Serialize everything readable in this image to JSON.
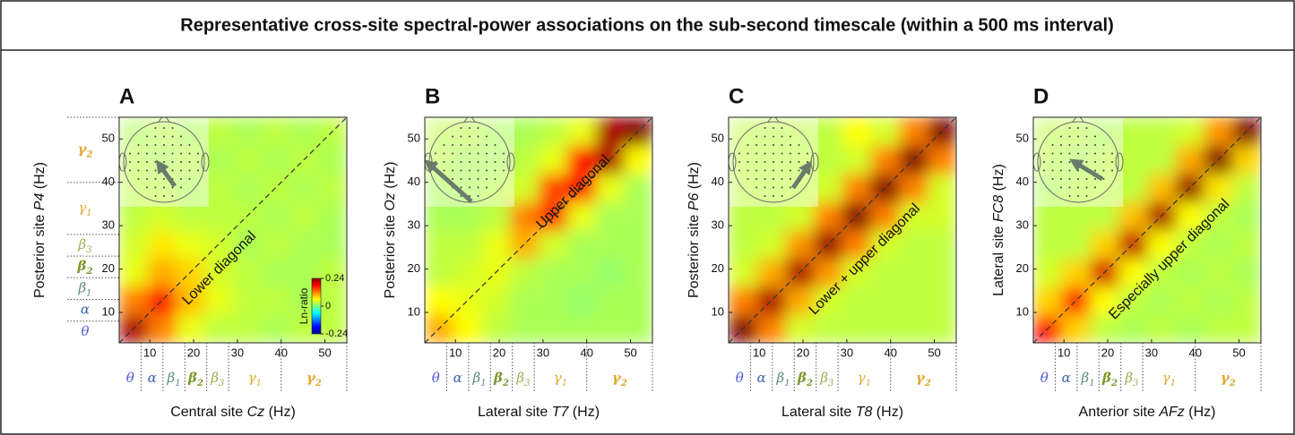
{
  "title": "Representative cross-site spectral-power associations on the sub-second timescale (within a 500 ms interval)",
  "bands": [
    {
      "symbol": "θ",
      "from": 3,
      "to": 8,
      "color": "#4f5bd5"
    },
    {
      "symbol": "α",
      "from": 8,
      "to": 13,
      "color": "#3d64a8"
    },
    {
      "symbol": "β",
      "sub": "1",
      "from": 13,
      "to": 18,
      "color": "#5c8a7a"
    },
    {
      "symbol": "β",
      "sub": "2",
      "from": 18,
      "to": 23,
      "color": "#7a9a2a"
    },
    {
      "symbol": "β",
      "sub": "3",
      "from": 23,
      "to": 28,
      "color": "#a0aa50"
    },
    {
      "symbol": "γ",
      "sub": "1",
      "from": 28,
      "to": 40,
      "color": "#e0a830"
    },
    {
      "symbol": "γ",
      "sub": "2",
      "from": 40,
      "to": 55,
      "color": "#e0a830"
    }
  ],
  "chart_data": [
    {
      "type": "heatmap",
      "panel": "A",
      "xlabel": [
        "Central site ",
        "Cz",
        " (Hz)"
      ],
      "ylabel": [
        "Posterior site ",
        "P4",
        " (Hz)"
      ],
      "annotation": "Lower diagonal",
      "xlim": [
        3,
        55
      ],
      "ylim": [
        3,
        55
      ],
      "xticks": [
        10,
        20,
        30,
        40,
        50
      ],
      "yticks": [
        10,
        20,
        30,
        40,
        50
      ],
      "zlim": [
        -0.24,
        0.24
      ],
      "colorbar": {
        "label": "Ln-ratio",
        "ticks": [
          0.24,
          0,
          -0.24
        ]
      },
      "z": [
        [
          0.22,
          0.12,
          0.05,
          0.03,
          0.03,
          0.02,
          0.03,
          0.03
        ],
        [
          0.12,
          0.18,
          0.09,
          0.05,
          0.03,
          0.03,
          0.02,
          0.03
        ],
        [
          0.05,
          0.1,
          0.08,
          0.04,
          0.03,
          0.02,
          0.02,
          0.03
        ],
        [
          0.04,
          0.07,
          0.05,
          0.04,
          0.02,
          0.03,
          0.02,
          0.02
        ],
        [
          0.03,
          0.04,
          0.03,
          0.03,
          0.03,
          0.02,
          0.03,
          0.02
        ],
        [
          0.03,
          0.03,
          0.02,
          0.03,
          0.02,
          0.03,
          0.02,
          0.03
        ],
        [
          0.03,
          0.02,
          0.03,
          0.02,
          0.03,
          0.02,
          0.03,
          0.02
        ],
        [
          0.02,
          0.03,
          0.02,
          0.03,
          0.02,
          0.03,
          0.02,
          0.03
        ]
      ]
    },
    {
      "type": "heatmap",
      "panel": "B",
      "xlabel": [
        "Lateral site ",
        "T7",
        " (Hz)"
      ],
      "ylabel": [
        "Posterior site ",
        "Oz",
        " (Hz)"
      ],
      "annotation": "Upper diagonal",
      "xlim": [
        3,
        55
      ],
      "ylim": [
        3,
        55
      ],
      "xticks": [
        10,
        20,
        30,
        40,
        50
      ],
      "yticks": [
        10,
        20,
        30,
        40,
        50
      ],
      "zlim": [
        -0.24,
        0.24
      ],
      "z": [
        [
          0.1,
          0.06,
          0.03,
          0.02,
          0.02,
          0.02,
          0.02,
          0.02
        ],
        [
          0.06,
          0.05,
          0.04,
          0.02,
          0.02,
          0.01,
          0.02,
          0.02
        ],
        [
          0.03,
          0.04,
          0.05,
          0.03,
          0.02,
          0.02,
          0.01,
          0.02
        ],
        [
          0.03,
          0.03,
          0.05,
          0.1,
          0.04,
          0.02,
          0.02,
          0.02
        ],
        [
          0.02,
          0.02,
          0.03,
          0.12,
          0.16,
          0.05,
          0.02,
          0.02
        ],
        [
          0.02,
          0.02,
          0.03,
          0.04,
          0.15,
          0.18,
          0.05,
          0.02
        ],
        [
          0.03,
          0.02,
          0.02,
          0.03,
          0.05,
          0.18,
          0.22,
          0.06
        ],
        [
          0.03,
          0.03,
          0.02,
          0.02,
          0.03,
          0.05,
          0.22,
          0.24
        ]
      ]
    },
    {
      "type": "heatmap",
      "panel": "C",
      "xlabel": [
        "Lateral site ",
        "T8",
        " (Hz)"
      ],
      "ylabel": [
        "Posterior site ",
        "P6",
        " (Hz)"
      ],
      "annotation": "Lower + upper diagonal",
      "xlim": [
        3,
        55
      ],
      "ylim": [
        3,
        55
      ],
      "xticks": [
        10,
        20,
        30,
        40,
        50
      ],
      "yticks": [
        10,
        20,
        30,
        40,
        50
      ],
      "zlim": [
        -0.24,
        0.24
      ],
      "z": [
        [
          0.24,
          0.12,
          0.04,
          0.03,
          0.03,
          0.03,
          0.03,
          0.03
        ],
        [
          0.12,
          0.22,
          0.1,
          0.04,
          0.03,
          0.03,
          0.03,
          0.03
        ],
        [
          0.04,
          0.1,
          0.22,
          0.11,
          0.04,
          0.03,
          0.03,
          0.03
        ],
        [
          0.03,
          0.04,
          0.11,
          0.23,
          0.12,
          0.04,
          0.03,
          0.03
        ],
        [
          0.03,
          0.03,
          0.04,
          0.12,
          0.24,
          0.12,
          0.04,
          0.04
        ],
        [
          0.03,
          0.03,
          0.03,
          0.04,
          0.12,
          0.24,
          0.12,
          0.04
        ],
        [
          0.03,
          0.03,
          0.03,
          0.03,
          0.04,
          0.12,
          0.24,
          0.12
        ],
        [
          0.03,
          0.03,
          0.03,
          0.03,
          0.06,
          0.04,
          0.12,
          0.24
        ]
      ]
    },
    {
      "type": "heatmap",
      "panel": "D",
      "xlabel": [
        "Anterior site ",
        "AFz",
        " (Hz)"
      ],
      "ylabel": [
        "Lateral site ",
        "FC8",
        " (Hz)"
      ],
      "annotation": "Especially upper diagonal",
      "xlim": [
        3,
        55
      ],
      "ylim": [
        3,
        55
      ],
      "xticks": [
        10,
        20,
        30,
        40,
        50
      ],
      "yticks": [
        10,
        20,
        30,
        40,
        50
      ],
      "zlim": [
        -0.24,
        0.24
      ],
      "z": [
        [
          0.18,
          0.08,
          0.03,
          0.02,
          0.03,
          0.02,
          0.03,
          0.03
        ],
        [
          0.08,
          0.18,
          0.06,
          0.03,
          0.02,
          0.03,
          0.02,
          0.03
        ],
        [
          0.04,
          0.08,
          0.2,
          0.06,
          0.03,
          0.02,
          0.03,
          0.02
        ],
        [
          0.03,
          0.03,
          0.08,
          0.21,
          0.06,
          0.03,
          0.02,
          0.03
        ],
        [
          0.03,
          0.03,
          0.03,
          0.09,
          0.22,
          0.06,
          0.03,
          0.02
        ],
        [
          0.02,
          0.03,
          0.03,
          0.03,
          0.09,
          0.23,
          0.07,
          0.03
        ],
        [
          0.03,
          0.02,
          0.03,
          0.03,
          0.03,
          0.1,
          0.24,
          0.08
        ],
        [
          0.03,
          0.03,
          0.02,
          0.03,
          0.03,
          0.04,
          0.11,
          0.24
        ]
      ]
    }
  ]
}
